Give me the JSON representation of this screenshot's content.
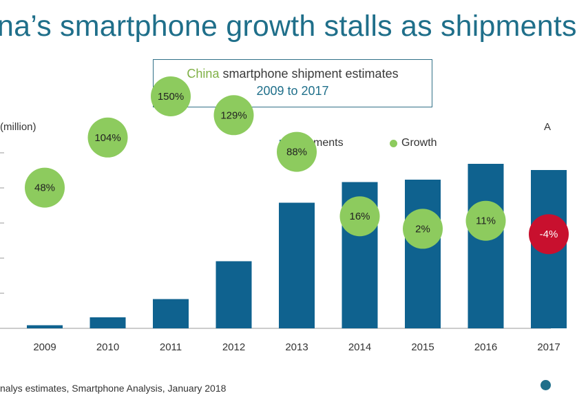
{
  "headline": "na’s smartphone growth stalls as shipments",
  "subtitle": {
    "accent": "China",
    "rest": " smartphone shipment estimates",
    "range": "2009 to 2017"
  },
  "chart_data": {
    "type": "bar",
    "unit_label": "(million)",
    "categories": [
      "2009",
      "2010",
      "2011",
      "2012",
      "2013",
      "2014",
      "2015",
      "2016",
      "2017"
    ],
    "series": [
      {
        "name": "Shipments",
        "values": [
          9,
          32,
          85,
          195,
          365,
          425,
          432,
          478,
          460
        ],
        "color": "#0f628f"
      },
      {
        "name": "Growth",
        "values": [
          48,
          104,
          150,
          129,
          88,
          16,
          2,
          11,
          -4
        ],
        "labels": [
          "48%",
          "104%",
          "150%",
          "129%",
          "88%",
          "16%",
          "2%",
          "11%",
          "-4%"
        ],
        "color": "#8dcb5e",
        "negative_color": "#c8102e"
      }
    ],
    "ylim": [
      0,
      510
    ],
    "legend": "top-right"
  },
  "corner_glyph": "A",
  "source": "nalys estimates, Smartphone Analysis, January 2018"
}
